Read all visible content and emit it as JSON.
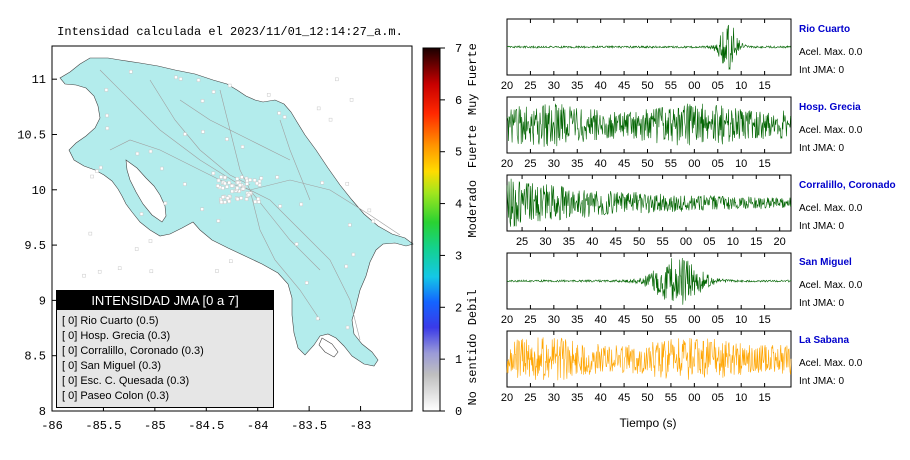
{
  "title": "Intensidad calculada el 2023/11/01_12:14:27_a.m.",
  "map": {
    "xticks": [
      "-86",
      "-85.5",
      "-85",
      "-84.5",
      "-84",
      "-83.5",
      "-83"
    ],
    "yticks": [
      "11",
      "10.5",
      "10",
      "9.5",
      "9",
      "8.5",
      "8"
    ],
    "xlim": [
      -86,
      -82.5
    ],
    "ylim": [
      8,
      11.3
    ],
    "land_color": "#b3ecec"
  },
  "colorbar": {
    "ticks": [
      "0",
      "1",
      "2",
      "3",
      "4",
      "5",
      "6",
      "7"
    ],
    "category_labels": [
      "No sentido",
      "Debil",
      "Moderado",
      "Fuerte",
      "Muy Fuerte"
    ],
    "range": [
      0,
      7
    ]
  },
  "legend": {
    "title": "INTENSIDAD JMA [0 a 7]",
    "items": [
      "[ 0] Rio Cuarto (0.5)",
      "[ 0] Hosp. Grecia (0.3)",
      "[ 0] Corralillo, Coronado (0.3)",
      "[ 0] San Miguel (0.3)",
      "[ 0] Esc. C. Quesada (0.3)",
      "[ 0] Paseo Colon (0.3)"
    ]
  },
  "stations": [
    {
      "name": "Rio Cuarto",
      "acel": "Acel. Max. 0.0",
      "jma": "Int JMA: 0",
      "color": "#006400",
      "xticks": [
        "20",
        "25",
        "30",
        "35",
        "40",
        "45",
        "50",
        "55",
        "00",
        "05",
        "10",
        "15"
      ]
    },
    {
      "name": "Hosp. Grecia",
      "acel": "Acel. Max. 0.0",
      "jma": "Int JMA: 0",
      "color": "#006400",
      "xticks": [
        "20",
        "25",
        "30",
        "35",
        "40",
        "45",
        "50",
        "55",
        "00",
        "05",
        "10",
        "15"
      ]
    },
    {
      "name": "Corralillo, Coronado",
      "acel": "Acel. Max. 0.0",
      "jma": "Int JMA: 0",
      "color": "#006400",
      "xticks": [
        "25",
        "30",
        "35",
        "40",
        "45",
        "50",
        "55",
        "00",
        "05",
        "10",
        "15",
        "20"
      ]
    },
    {
      "name": "San Miguel",
      "acel": "Acel. Max. 0.0",
      "jma": "Int JMA: 0",
      "color": "#006400",
      "xticks": [
        "20",
        "25",
        "30",
        "35",
        "40",
        "45",
        "50",
        "55",
        "00",
        "05",
        "10",
        "15"
      ]
    },
    {
      "name": "La Sabana",
      "acel": "Acel. Max. 0.0",
      "jma": "Int JMA: 0",
      "color": "#ffa500",
      "xticks": [
        "20",
        "25",
        "30",
        "35",
        "40",
        "45",
        "50",
        "55",
        "00",
        "05",
        "10",
        "15"
      ]
    }
  ],
  "xlabel": "Tiempo (s)",
  "chart_data": {
    "type": "line",
    "title": "Intensidad calculada el 2023/11/01_12:14:27_a.m.",
    "xlabel": "Tiempo (s)",
    "series": [
      {
        "name": "Rio Cuarto",
        "shape": "burst",
        "burst_center": "07"
      },
      {
        "name": "Hosp. Grecia",
        "shape": "noise"
      },
      {
        "name": "Corralillo, Coronado",
        "shape": "decay"
      },
      {
        "name": "San Miguel",
        "shape": "burst",
        "burst_center": "58"
      },
      {
        "name": "La Sabana",
        "shape": "noise"
      }
    ]
  }
}
